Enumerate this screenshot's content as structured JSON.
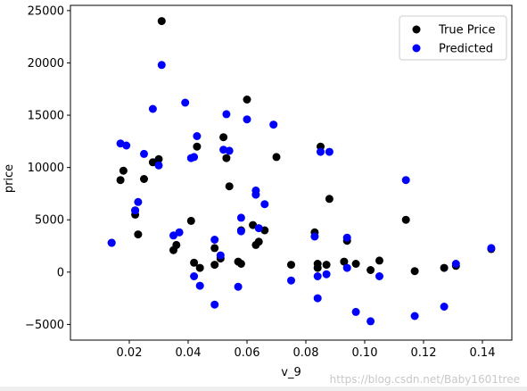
{
  "chart_data": {
    "type": "scatter",
    "xlabel": "v_9",
    "ylabel": "price",
    "xlim": [
      0.0,
      0.15
    ],
    "ylim": [
      -6500,
      25500
    ],
    "xticks": [
      0.02,
      0.04,
      0.06,
      0.08,
      0.1,
      0.12,
      0.14
    ],
    "xtick_labels": [
      "0.02",
      "0.04",
      "0.06",
      "0.08",
      "0.10",
      "0.12",
      "0.14"
    ],
    "yticks": [
      -5000,
      0,
      5000,
      10000,
      15000,
      20000,
      25000
    ],
    "ytick_labels": [
      "−5000",
      "0",
      "5000",
      "10000",
      "15000",
      "20000",
      "25000"
    ],
    "legend_position": "top-right",
    "grid": false,
    "series": [
      {
        "name": "True Price",
        "color": "#000000",
        "points": [
          [
            0.014,
            2800
          ],
          [
            0.017,
            8800
          ],
          [
            0.018,
            9700
          ],
          [
            0.022,
            5900
          ],
          [
            0.022,
            5500
          ],
          [
            0.023,
            3600
          ],
          [
            0.025,
            8900
          ],
          [
            0.028,
            10500
          ],
          [
            0.03,
            10800
          ],
          [
            0.031,
            24000
          ],
          [
            0.035,
            2100
          ],
          [
            0.036,
            2600
          ],
          [
            0.041,
            4900
          ],
          [
            0.042,
            900
          ],
          [
            0.043,
            12000
          ],
          [
            0.044,
            400
          ],
          [
            0.049,
            2300
          ],
          [
            0.049,
            700
          ],
          [
            0.051,
            1300
          ],
          [
            0.052,
            12900
          ],
          [
            0.053,
            10900
          ],
          [
            0.054,
            8200
          ],
          [
            0.057,
            1000
          ],
          [
            0.058,
            800
          ],
          [
            0.058,
            4000
          ],
          [
            0.06,
            16500
          ],
          [
            0.062,
            4500
          ],
          [
            0.063,
            2600
          ],
          [
            0.064,
            2900
          ],
          [
            0.066,
            4000
          ],
          [
            0.07,
            11000
          ],
          [
            0.075,
            700
          ],
          [
            0.083,
            3800
          ],
          [
            0.084,
            400
          ],
          [
            0.084,
            800
          ],
          [
            0.085,
            12000
          ],
          [
            0.087,
            700
          ],
          [
            0.088,
            7000
          ],
          [
            0.093,
            1000
          ],
          [
            0.094,
            3000
          ],
          [
            0.097,
            800
          ],
          [
            0.102,
            200
          ],
          [
            0.105,
            1100
          ],
          [
            0.114,
            5000
          ],
          [
            0.117,
            100
          ],
          [
            0.127,
            400
          ],
          [
            0.131,
            600
          ],
          [
            0.143,
            2200
          ]
        ]
      },
      {
        "name": "Predicted",
        "color": "#0000ff",
        "points": [
          [
            0.014,
            2800
          ],
          [
            0.017,
            12300
          ],
          [
            0.019,
            12100
          ],
          [
            0.022,
            5900
          ],
          [
            0.023,
            6700
          ],
          [
            0.025,
            11300
          ],
          [
            0.028,
            15600
          ],
          [
            0.03,
            10200
          ],
          [
            0.031,
            19800
          ],
          [
            0.035,
            3500
          ],
          [
            0.037,
            3800
          ],
          [
            0.039,
            16200
          ],
          [
            0.041,
            10900
          ],
          [
            0.042,
            11000
          ],
          [
            0.042,
            -400
          ],
          [
            0.043,
            13000
          ],
          [
            0.044,
            -1300
          ],
          [
            0.049,
            3100
          ],
          [
            0.049,
            -3100
          ],
          [
            0.051,
            1600
          ],
          [
            0.052,
            11700
          ],
          [
            0.053,
            15100
          ],
          [
            0.054,
            11600
          ],
          [
            0.057,
            -1400
          ],
          [
            0.058,
            3900
          ],
          [
            0.058,
            5200
          ],
          [
            0.06,
            14600
          ],
          [
            0.063,
            7800
          ],
          [
            0.063,
            7400
          ],
          [
            0.064,
            4200
          ],
          [
            0.066,
            6500
          ],
          [
            0.069,
            14100
          ],
          [
            0.075,
            -800
          ],
          [
            0.083,
            3400
          ],
          [
            0.084,
            -400
          ],
          [
            0.084,
            -2500
          ],
          [
            0.085,
            11500
          ],
          [
            0.087,
            -200
          ],
          [
            0.088,
            11500
          ],
          [
            0.094,
            3300
          ],
          [
            0.094,
            400
          ],
          [
            0.097,
            -3800
          ],
          [
            0.102,
            -4700
          ],
          [
            0.105,
            -400
          ],
          [
            0.114,
            8800
          ],
          [
            0.117,
            -4200
          ],
          [
            0.127,
            -3300
          ],
          [
            0.131,
            800
          ],
          [
            0.143,
            2300
          ]
        ]
      }
    ]
  },
  "watermark": "https://blog.csdn.net/Baby1601tree"
}
